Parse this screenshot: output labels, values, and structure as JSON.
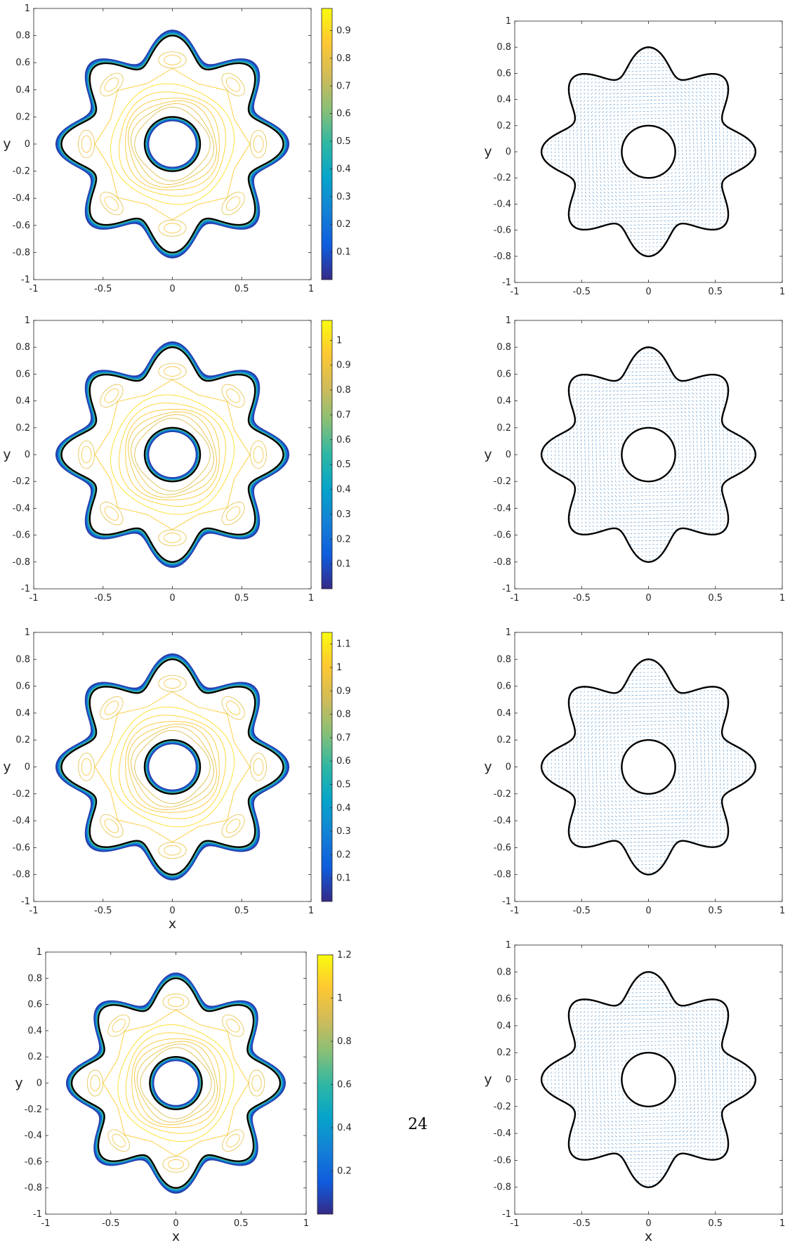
{
  "page_number": "24",
  "colors": {
    "boundary": "#000000",
    "quiver": "#4a8fc9",
    "axis": "#262626",
    "parula": [
      "#352a87",
      "#0f5cdd",
      "#1481d6",
      "#06a4ca",
      "#2eb7a4",
      "#87bf77",
      "#d1bb59",
      "#fec832",
      "#f9fb0e"
    ]
  },
  "chart_data": [
    {
      "type": "contour",
      "panel": "row1-left",
      "xlim": [
        -1,
        1
      ],
      "ylim": [
        -1,
        1
      ],
      "xticks": [
        "-1",
        "-0.5",
        "0",
        "0.5",
        "1"
      ],
      "yticks": [
        "1",
        "0.8",
        "0.6",
        "0.4",
        "0.2",
        "0",
        "-0.2",
        "-0.4",
        "-0.6",
        "-0.8",
        "-1"
      ],
      "xlabel": "",
      "ylabel": "y",
      "colorbar": {
        "min": 0.0,
        "max": 0.98,
        "ticks": [
          "0.9",
          "0.8",
          "0.7",
          "0.6",
          "0.5",
          "0.4",
          "0.3",
          "0.2",
          "0.1"
        ]
      },
      "domain": {
        "outer_radius": 0.7,
        "lobes": 8,
        "amplitude": 0.1,
        "inner_radius": 0.2
      }
    },
    {
      "type": "quiver",
      "panel": "row1-right",
      "xlim": [
        -1,
        1
      ],
      "ylim": [
        -1,
        1
      ],
      "xticks": [
        "-1",
        "-0.5",
        "0",
        "0.5",
        "1"
      ],
      "yticks": [
        "1",
        "0.8",
        "0.6",
        "0.4",
        "0.2",
        "0",
        "-0.2",
        "-0.4",
        "-0.6",
        "-0.8",
        "-1"
      ],
      "xlabel": "",
      "ylabel": "y",
      "domain": {
        "outer_radius": 0.7,
        "lobes": 8,
        "amplitude": 0.1,
        "inner_radius": 0.2
      }
    },
    {
      "type": "contour",
      "panel": "row2-left",
      "xlim": [
        -1,
        1
      ],
      "ylim": [
        -1,
        1
      ],
      "xticks": [
        "-1",
        "-0.5",
        "0",
        "0.5",
        "1"
      ],
      "yticks": [
        "1",
        "0.8",
        "0.6",
        "0.4",
        "0.2",
        "0",
        "-0.2",
        "-0.4",
        "-0.6",
        "-0.8",
        "-1"
      ],
      "xlabel": "",
      "ylabel": "y",
      "colorbar": {
        "min": 0.0,
        "max": 1.08,
        "ticks": [
          "1",
          "0.9",
          "0.8",
          "0.7",
          "0.6",
          "0.5",
          "0.4",
          "0.3",
          "0.2",
          "0.1"
        ]
      },
      "domain": {
        "outer_radius": 0.7,
        "lobes": 8,
        "amplitude": 0.1,
        "inner_radius": 0.2
      }
    },
    {
      "type": "quiver",
      "panel": "row2-right",
      "xlim": [
        -1,
        1
      ],
      "ylim": [
        -1,
        1
      ],
      "xticks": [
        "-1",
        "-0.5",
        "0",
        "0.5",
        "1"
      ],
      "yticks": [
        "1",
        "0.8",
        "0.6",
        "0.4",
        "0.2",
        "0",
        "-0.2",
        "-0.4",
        "-0.6",
        "-0.8",
        "-1"
      ],
      "xlabel": "",
      "ylabel": "y",
      "domain": {
        "outer_radius": 0.7,
        "lobes": 8,
        "amplitude": 0.1,
        "inner_radius": 0.2
      }
    },
    {
      "type": "contour",
      "panel": "row3-left",
      "xlim": [
        -1,
        1
      ],
      "ylim": [
        -1,
        1
      ],
      "xticks": [
        "-1",
        "-0.5",
        "0",
        "0.5",
        "1"
      ],
      "yticks": [
        "1",
        "0.8",
        "0.6",
        "0.4",
        "0.2",
        "0",
        "-0.2",
        "-0.4",
        "-0.6",
        "-0.8",
        "-1"
      ],
      "xlabel": "x",
      "ylabel": "y",
      "colorbar": {
        "min": 0.0,
        "max": 1.15,
        "ticks": [
          "1.1",
          "1",
          "0.9",
          "0.8",
          "0.7",
          "0.6",
          "0.5",
          "0.4",
          "0.3",
          "0.2",
          "0.1"
        ]
      },
      "domain": {
        "outer_radius": 0.7,
        "lobes": 8,
        "amplitude": 0.1,
        "inner_radius": 0.2
      }
    },
    {
      "type": "quiver",
      "panel": "row3-right",
      "xlim": [
        -1,
        1
      ],
      "ylim": [
        -1,
        1
      ],
      "xticks": [
        "-1",
        "-0.5",
        "0",
        "0.5",
        "1"
      ],
      "yticks": [
        "1",
        "0.8",
        "0.6",
        "0.4",
        "0.2",
        "0",
        "-0.2",
        "-0.4",
        "-0.6",
        "-0.8",
        "-1"
      ],
      "xlabel": "",
      "ylabel": "y",
      "domain": {
        "outer_radius": 0.7,
        "lobes": 8,
        "amplitude": 0.1,
        "inner_radius": 0.2
      }
    },
    {
      "type": "contour",
      "panel": "row4-left",
      "xlim": [
        -1,
        1
      ],
      "ylim": [
        -1,
        1
      ],
      "xticks": [
        "-1",
        "-0.5",
        "0",
        "0.5",
        "1"
      ],
      "yticks": [
        "1",
        "0.8",
        "0.6",
        "0.4",
        "0.2",
        "0",
        "-0.2",
        "-0.4",
        "-0.6",
        "-0.8",
        "-1"
      ],
      "xlabel": "x",
      "ylabel": "y",
      "colorbar": {
        "min": 0.0,
        "max": 1.2,
        "ticks": [
          "1.2",
          "1",
          "0.8",
          "0.6",
          "0.4",
          "0.2"
        ]
      },
      "domain": {
        "outer_radius": 0.7,
        "lobes": 8,
        "amplitude": 0.1,
        "inner_radius": 0.2
      }
    },
    {
      "type": "quiver",
      "panel": "row4-right",
      "xlim": [
        -1,
        1
      ],
      "ylim": [
        -1,
        1
      ],
      "xticks": [
        "-1",
        "-0.5",
        "0",
        "0.5",
        "1"
      ],
      "yticks": [
        "1",
        "0.8",
        "0.6",
        "0.4",
        "0.2",
        "0",
        "-0.2",
        "-0.4",
        "-0.6",
        "-0.8",
        "-1"
      ],
      "xlabel": "x",
      "ylabel": "y",
      "domain": {
        "outer_radius": 0.7,
        "lobes": 8,
        "amplitude": 0.1,
        "inner_radius": 0.2
      }
    }
  ]
}
